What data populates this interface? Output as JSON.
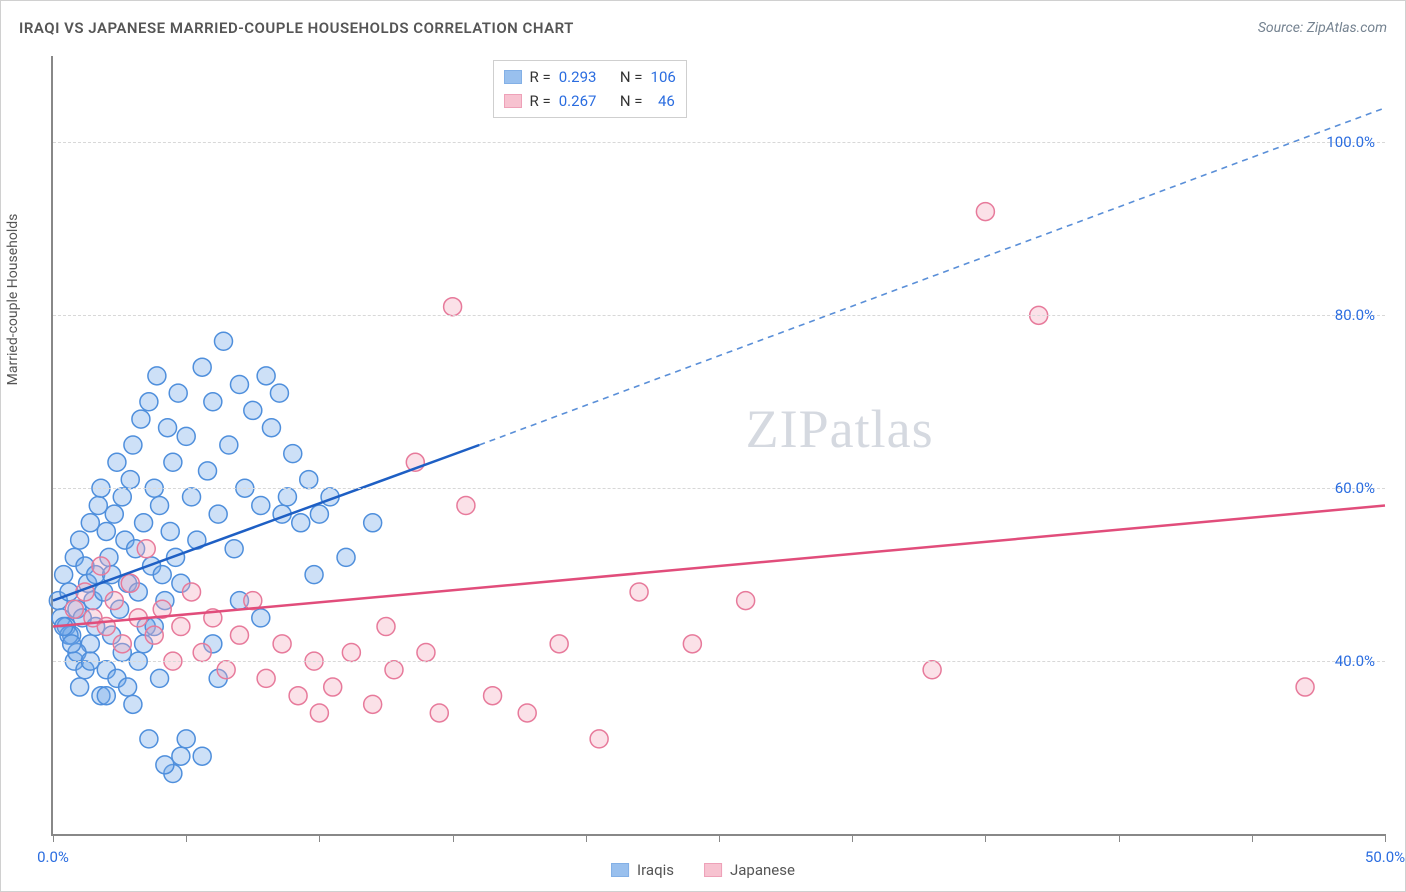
{
  "header": {
    "title": "IRAQI VS JAPANESE MARRIED-COUPLE HOUSEHOLDS CORRELATION CHART",
    "source": "Source: ZipAtlas.com"
  },
  "chart": {
    "type": "scatter",
    "y_axis_label": "Married-couple Households",
    "xlim": [
      0,
      50
    ],
    "ylim": [
      20,
      110
    ],
    "x_ticks": [
      0,
      5,
      10,
      15,
      20,
      25,
      30,
      35,
      40,
      45,
      50
    ],
    "x_tick_labels": {
      "0": "0.0%",
      "50": "50.0%"
    },
    "y_gridlines": [
      40,
      60,
      80,
      100
    ],
    "y_tick_labels": {
      "40": "40.0%",
      "60": "60.0%",
      "80": "80.0%",
      "100": "100.0%"
    },
    "background_color": "#ffffff",
    "grid_color": "#d8d8d8",
    "axis_color": "#888888",
    "tick_label_color": "#2b6de0",
    "marker_radius": 9,
    "marker_stroke_width": 1.5,
    "marker_fill_opacity": 0.35,
    "series": [
      {
        "name": "Iraqis",
        "color": "#6fa6e8",
        "stroke": "#4f8fdc",
        "line_color": "#1e5fc4",
        "dash_after_color": "#5a8fd8",
        "R": "0.293",
        "N": "106",
        "regression": {
          "x1": 0,
          "y1": 47,
          "x2_solid": 16,
          "y2_solid": 65,
          "x2": 50,
          "y2": 104
        },
        "points": [
          [
            0.2,
            47
          ],
          [
            0.3,
            45
          ],
          [
            0.4,
            50
          ],
          [
            0.5,
            44
          ],
          [
            0.6,
            48
          ],
          [
            0.7,
            43
          ],
          [
            0.8,
            52
          ],
          [
            0.9,
            46
          ],
          [
            1.0,
            54
          ],
          [
            1.1,
            45
          ],
          [
            1.2,
            51
          ],
          [
            1.3,
            49
          ],
          [
            1.4,
            56
          ],
          [
            1.5,
            47
          ],
          [
            1.6,
            50
          ],
          [
            1.7,
            58
          ],
          [
            1.8,
            60
          ],
          [
            1.9,
            48
          ],
          [
            2.0,
            55
          ],
          [
            2.1,
            52
          ],
          [
            2.2,
            50
          ],
          [
            2.3,
            57
          ],
          [
            2.4,
            63
          ],
          [
            2.5,
            46
          ],
          [
            2.6,
            59
          ],
          [
            2.7,
            54
          ],
          [
            2.8,
            49
          ],
          [
            2.9,
            61
          ],
          [
            3.0,
            65
          ],
          [
            3.1,
            53
          ],
          [
            3.2,
            48
          ],
          [
            3.3,
            68
          ],
          [
            3.4,
            56
          ],
          [
            3.5,
            44
          ],
          [
            3.6,
            70
          ],
          [
            3.7,
            51
          ],
          [
            3.8,
            60
          ],
          [
            3.9,
            73
          ],
          [
            4.0,
            58
          ],
          [
            4.1,
            50
          ],
          [
            4.2,
            47
          ],
          [
            4.3,
            67
          ],
          [
            4.4,
            55
          ],
          [
            4.5,
            63
          ],
          [
            4.6,
            52
          ],
          [
            4.7,
            71
          ],
          [
            4.8,
            49
          ],
          [
            5.0,
            66
          ],
          [
            5.2,
            59
          ],
          [
            5.4,
            54
          ],
          [
            5.6,
            74
          ],
          [
            5.8,
            62
          ],
          [
            6.0,
            70
          ],
          [
            6.2,
            57
          ],
          [
            6.4,
            77
          ],
          [
            6.6,
            65
          ],
          [
            6.8,
            53
          ],
          [
            7.0,
            72
          ],
          [
            7.2,
            60
          ],
          [
            7.5,
            69
          ],
          [
            7.8,
            58
          ],
          [
            8.0,
            73
          ],
          [
            8.2,
            67
          ],
          [
            8.5,
            71
          ],
          [
            8.8,
            59
          ],
          [
            9.0,
            64
          ],
          [
            9.3,
            56
          ],
          [
            9.6,
            61
          ],
          [
            10.0,
            57
          ],
          [
            0.8,
            40
          ],
          [
            1.4,
            42
          ],
          [
            2.0,
            39
          ],
          [
            2.6,
            41
          ],
          [
            1.0,
            37
          ],
          [
            3.0,
            35
          ],
          [
            2.2,
            43
          ],
          [
            4.0,
            38
          ],
          [
            1.6,
            44
          ],
          [
            0.6,
            43
          ],
          [
            3.4,
            42
          ],
          [
            4.8,
            29
          ],
          [
            1.8,
            36
          ],
          [
            0.9,
            41
          ],
          [
            5.0,
            31
          ],
          [
            2.4,
            38
          ],
          [
            6.0,
            42
          ],
          [
            3.8,
            44
          ],
          [
            4.5,
            27
          ],
          [
            1.2,
            39
          ],
          [
            0.4,
            44
          ],
          [
            7.0,
            47
          ],
          [
            2.8,
            37
          ],
          [
            3.6,
            31
          ],
          [
            4.2,
            28
          ],
          [
            5.6,
            29
          ],
          [
            1.4,
            40
          ],
          [
            0.7,
            42
          ],
          [
            2.0,
            36
          ],
          [
            3.2,
            40
          ],
          [
            6.2,
            38
          ],
          [
            7.8,
            45
          ],
          [
            8.6,
            57
          ],
          [
            9.8,
            50
          ],
          [
            10.4,
            59
          ],
          [
            11.0,
            52
          ],
          [
            12.0,
            56
          ]
        ]
      },
      {
        "name": "Japanese",
        "color": "#f4a9bd",
        "stroke": "#e77a9b",
        "line_color": "#e14d7b",
        "R": "0.267",
        "N": "46",
        "regression": {
          "x1": 0,
          "y1": 44,
          "x2_solid": 50,
          "y2_solid": 58,
          "x2": 50,
          "y2": 58
        },
        "points": [
          [
            0.8,
            46
          ],
          [
            1.2,
            48
          ],
          [
            1.5,
            45
          ],
          [
            1.8,
            51
          ],
          [
            2.0,
            44
          ],
          [
            2.3,
            47
          ],
          [
            2.6,
            42
          ],
          [
            2.9,
            49
          ],
          [
            3.2,
            45
          ],
          [
            3.5,
            53
          ],
          [
            3.8,
            43
          ],
          [
            4.1,
            46
          ],
          [
            4.5,
            40
          ],
          [
            4.8,
            44
          ],
          [
            5.2,
            48
          ],
          [
            5.6,
            41
          ],
          [
            6.0,
            45
          ],
          [
            6.5,
            39
          ],
          [
            7.0,
            43
          ],
          [
            7.5,
            47
          ],
          [
            8.0,
            38
          ],
          [
            8.6,
            42
          ],
          [
            9.2,
            36
          ],
          [
            9.8,
            40
          ],
          [
            10.5,
            37
          ],
          [
            11.2,
            41
          ],
          [
            12.0,
            35
          ],
          [
            12.8,
            39
          ],
          [
            13.6,
            63
          ],
          [
            14.5,
            34
          ],
          [
            15.5,
            58
          ],
          [
            16.5,
            36
          ],
          [
            17.8,
            34
          ],
          [
            19.0,
            42
          ],
          [
            20.5,
            31
          ],
          [
            22.0,
            48
          ],
          [
            24.0,
            42
          ],
          [
            26.0,
            47
          ],
          [
            15.0,
            81
          ],
          [
            33.0,
            39
          ],
          [
            37.0,
            80
          ],
          [
            35.0,
            92
          ],
          [
            47.0,
            37
          ],
          [
            10.0,
            34
          ],
          [
            12.5,
            44
          ],
          [
            14.0,
            41
          ]
        ]
      }
    ],
    "stats_box": {
      "r_label": "R =",
      "n_label": "N ="
    },
    "legend": {
      "items": [
        "Iraqis",
        "Japanese"
      ]
    },
    "watermark": {
      "zip": "ZIP",
      "atlas": "atlas"
    }
  }
}
